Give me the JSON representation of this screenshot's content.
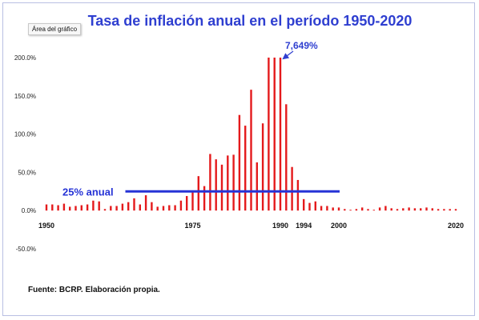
{
  "ui": {
    "tooltip": "Área del gráfico",
    "title": "Tasa de inflación anual en el período 1950-2020",
    "source": "Fuente: BCRP. Elaboración propia.",
    "colors": {
      "bars": "#e41a1c",
      "reference_line": "#2633d6",
      "title": "#2f3fd0",
      "annotation": "#2f3fd0"
    }
  },
  "chart_data": {
    "type": "bar",
    "title": "Tasa de inflación anual en el período 1950-2020",
    "xlabel": "",
    "ylabel": "",
    "ylim": [
      -50,
      200
    ],
    "y_ticks": [
      "200.0%",
      "150.0%",
      "100.0%",
      "50.0%",
      "0.0%",
      "-50.0%"
    ],
    "y_tick_values": [
      200,
      150,
      100,
      50,
      0,
      -50
    ],
    "x_tick_labels": [
      {
        "year": 1950,
        "label": "1950"
      },
      {
        "year": 1975,
        "label": "1975"
      },
      {
        "year": 1990,
        "label": "1990"
      },
      {
        "year": 1994,
        "label": "1994"
      },
      {
        "year": 2000,
        "label": "2000"
      },
      {
        "year": 2020,
        "label": "2020"
      }
    ],
    "grid": false,
    "years": [
      1950,
      1951,
      1952,
      1953,
      1954,
      1955,
      1956,
      1957,
      1958,
      1959,
      1960,
      1961,
      1962,
      1963,
      1964,
      1965,
      1966,
      1967,
      1968,
      1969,
      1970,
      1971,
      1972,
      1973,
      1974,
      1975,
      1976,
      1977,
      1978,
      1979,
      1980,
      1981,
      1982,
      1983,
      1984,
      1985,
      1986,
      1987,
      1988,
      1989,
      1990,
      1991,
      1992,
      1993,
      1994,
      1995,
      1996,
      1997,
      1998,
      1999,
      2000,
      2001,
      2002,
      2003,
      2004,
      2005,
      2006,
      2007,
      2008,
      2009,
      2010,
      2011,
      2012,
      2013,
      2014,
      2015,
      2016,
      2017,
      2018,
      2019,
      2020
    ],
    "values": [
      8,
      8,
      7,
      9,
      5,
      6,
      7,
      8,
      13,
      12,
      2,
      6,
      6,
      9,
      11,
      16,
      8,
      20,
      11,
      5,
      6,
      7,
      7,
      13,
      19,
      24,
      45,
      32,
      74,
      67,
      60,
      72,
      73,
      125,
      111,
      158,
      63,
      114,
      200,
      200,
      200,
      139,
      57,
      40,
      15,
      10,
      12,
      6,
      6,
      4,
      4,
      2,
      1,
      2,
      4,
      2,
      1,
      4,
      6,
      3,
      2,
      3,
      4,
      3,
      3,
      4,
      3,
      2,
      2,
      2,
      2
    ],
    "truncated_label": "7,649%",
    "truncated_at_year": 1990,
    "reference_line": {
      "label": "25% anual",
      "value": 25,
      "from_year": 1975,
      "to_year": 2000
    }
  }
}
